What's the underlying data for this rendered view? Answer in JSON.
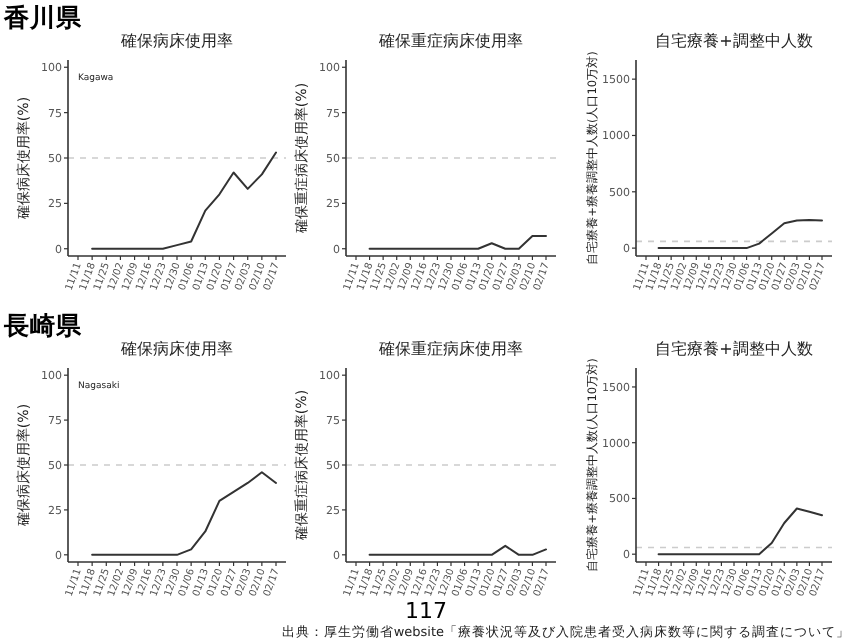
{
  "chart_data": [
    {
      "type": "line",
      "title": "確保病床使用率",
      "ylabel": "確保病床使用率(%)",
      "annotations": [
        "香川県",
        "Kagawa"
      ],
      "categories": [
        "11/11",
        "11/18",
        "11/25",
        "12/02",
        "12/09",
        "12/16",
        "12/23",
        "12/30",
        "01/06",
        "01/13",
        "01/20",
        "01/27",
        "02/03",
        "02/10",
        "02/17"
      ],
      "values": [
        null,
        0,
        0,
        0,
        0,
        0,
        0,
        2,
        4,
        21,
        30,
        42,
        33,
        41,
        53
      ],
      "color": "#333333",
      "ylim": [
        -4,
        104
      ],
      "yticks": [
        0,
        25,
        50,
        75,
        100
      ],
      "ref_lines": [
        {
          "axis": "y",
          "value": 50,
          "color": "#cccccc",
          "line_style": "dashed"
        }
      ]
    },
    {
      "type": "line",
      "title": "確保重症病床使用率",
      "ylabel": "確保重症病床使用率(%)",
      "categories": [
        "11/11",
        "11/18",
        "11/25",
        "12/02",
        "12/09",
        "12/16",
        "12/23",
        "12/30",
        "01/06",
        "01/13",
        "01/20",
        "01/27",
        "02/03",
        "02/10",
        "02/17"
      ],
      "values": [
        null,
        0,
        0,
        0,
        0,
        0,
        0,
        0,
        0,
        0,
        3,
        0,
        0,
        7,
        7
      ],
      "color": "#333333",
      "ylim": [
        -4,
        104
      ],
      "yticks": [
        0,
        25,
        50,
        75,
        100
      ],
      "ref_lines": [
        {
          "axis": "y",
          "value": 50,
          "color": "#cccccc",
          "line_style": "dashed"
        }
      ]
    },
    {
      "type": "line",
      "title": "自宅療養+調整中人数",
      "ylabel": "自宅療養+療養調整中人数(人口10万対)",
      "categories": [
        "11/11",
        "11/18",
        "11/25",
        "12/02",
        "12/09",
        "12/16",
        "12/23",
        "12/30",
        "01/06",
        "01/13",
        "01/20",
        "01/27",
        "02/03",
        "02/10",
        "02/17"
      ],
      "values": [
        null,
        0,
        0,
        0,
        0,
        0,
        0,
        0,
        0,
        40,
        130,
        220,
        245,
        250,
        245
      ],
      "color": "#333333",
      "ylim": [
        -70,
        1670
      ],
      "yticks": [
        0,
        500,
        1000,
        1500
      ],
      "ref_lines": [
        {
          "axis": "y",
          "value": 60,
          "color": "#cccccc",
          "line_style": "dashed"
        }
      ]
    },
    {
      "type": "line",
      "title": "確保病床使用率",
      "ylabel": "確保病床使用率(%)",
      "annotations": [
        "長崎県",
        "Nagasaki"
      ],
      "categories": [
        "11/11",
        "11/18",
        "11/25",
        "12/02",
        "12/09",
        "12/16",
        "12/23",
        "12/30",
        "01/06",
        "01/13",
        "01/20",
        "01/27",
        "02/03",
        "02/10",
        "02/17"
      ],
      "values": [
        null,
        0,
        0,
        0,
        0,
        0,
        0,
        0,
        3,
        13,
        30,
        35,
        40,
        46,
        40
      ],
      "color": "#333333",
      "ylim": [
        -4,
        104
      ],
      "yticks": [
        0,
        25,
        50,
        75,
        100
      ],
      "ref_lines": [
        {
          "axis": "y",
          "value": 50,
          "color": "#cccccc",
          "line_style": "dashed"
        }
      ]
    },
    {
      "type": "line",
      "title": "確保重症病床使用率",
      "ylabel": "確保重症病床使用率(%)",
      "categories": [
        "11/11",
        "11/18",
        "11/25",
        "12/02",
        "12/09",
        "12/16",
        "12/23",
        "12/30",
        "01/06",
        "01/13",
        "01/20",
        "01/27",
        "02/03",
        "02/10",
        "02/17"
      ],
      "values": [
        null,
        0,
        0,
        0,
        0,
        0,
        0,
        0,
        0,
        0,
        0,
        5,
        0,
        0,
        3
      ],
      "color": "#333333",
      "ylim": [
        -4,
        104
      ],
      "yticks": [
        0,
        25,
        50,
        75,
        100
      ],
      "ref_lines": [
        {
          "axis": "y",
          "value": 50,
          "color": "#cccccc",
          "line_style": "dashed"
        }
      ]
    },
    {
      "type": "line",
      "title": "自宅療養+調整中人数",
      "ylabel": "自宅療養+療養調整中人数(人口10万対)",
      "annotations": [
        "117",
        "出典：厚生労働省website「療養状況等及び入院患者受入病床数等に関する調査について」"
      ],
      "categories": [
        "11/11",
        "11/18",
        "11/25",
        "12/02",
        "12/09",
        "12/16",
        "12/23",
        "12/30",
        "01/06",
        "01/13",
        "01/20",
        "01/27",
        "02/03",
        "02/10",
        "02/17"
      ],
      "values": [
        null,
        0,
        0,
        0,
        0,
        0,
        0,
        0,
        0,
        0,
        100,
        280,
        410,
        380,
        350
      ],
      "color": "#333333",
      "ylim": [
        -70,
        1670
      ],
      "yticks": [
        0,
        500,
        1000,
        1500
      ],
      "ref_lines": [
        {
          "axis": "y",
          "value": 60,
          "color": "#cccccc",
          "line_style": "dashed"
        }
      ]
    }
  ]
}
